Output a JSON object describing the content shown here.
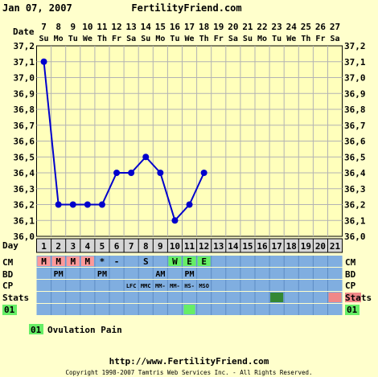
{
  "header": {
    "date": "Jan 07, 2007",
    "site": "FertilityFriend.com"
  },
  "labels": {
    "date": "Date",
    "day": "Day",
    "cm": "CM",
    "bd": "BD",
    "cp": "CP",
    "stats": "Stats",
    "legend_code": "01"
  },
  "legend": {
    "code": "01",
    "text": "Ovulation Pain"
  },
  "footer": {
    "url": "http://www.FertilityFriend.com",
    "copyright": "Copyright 1998-2007 Tamtris Web Services Inc. - All Rights Reserved."
  },
  "colors": {
    "background": "#ffffcc",
    "plot": "#ffffbb",
    "grid": "#b3b3b3",
    "line": "#0000cc",
    "row_blue": "#80aee0",
    "day_row": "#d6d6d6",
    "header_blue": "#0000cc",
    "cm_m": "#ff9999",
    "cm_ew": "#66ee66",
    "stats_green": "#338833",
    "stats_pink": "#f08888",
    "legend_green": "#66ee66"
  },
  "chart_data": {
    "type": "line",
    "ylim": [
      36.0,
      37.2
    ],
    "yticks": [
      "37,2",
      "37,1",
      "37,0",
      "36,9",
      "36,8",
      "36,7",
      "36,6",
      "36,5",
      "36,4",
      "36,3",
      "36,2",
      "36,1",
      "36,0"
    ],
    "dates": [
      "7",
      "8",
      "9",
      "10",
      "11",
      "12",
      "13",
      "14",
      "15",
      "16",
      "17",
      "18",
      "19",
      "20",
      "21",
      "22",
      "23",
      "24",
      "25",
      "26",
      "27"
    ],
    "weekdays": [
      "Su",
      "Mo",
      "Tu",
      "We",
      "Th",
      "Fr",
      "Sa",
      "Su",
      "Mo",
      "Tu",
      "We",
      "Th",
      "Fr",
      "Sa",
      "Su",
      "Mo",
      "Tu",
      "We",
      "Th",
      "Fr",
      "Sa"
    ],
    "days": [
      "1",
      "2",
      "3",
      "4",
      "5",
      "6",
      "7",
      "8",
      "9",
      "10",
      "11",
      "12",
      "13",
      "14",
      "15",
      "16",
      "17",
      "18",
      "19",
      "20",
      "21"
    ],
    "temps": [
      37.1,
      36.2,
      36.2,
      36.2,
      36.2,
      36.4,
      36.4,
      36.5,
      36.4,
      36.1,
      36.2,
      36.4,
      null,
      null,
      null,
      null,
      null,
      null,
      null,
      null,
      null
    ],
    "cm": [
      "M",
      "M",
      "M",
      "M",
      "*",
      "-",
      "",
      "S",
      "",
      "W",
      "E",
      "E",
      "",
      "",
      "",
      "",
      "",
      "",
      "",
      "",
      ""
    ],
    "bd": [
      "",
      "PM",
      "",
      "",
      "PM",
      "",
      "",
      "",
      "AM",
      "",
      "PM",
      "",
      "",
      "",
      "",
      "",
      "",
      "",
      "",
      "",
      ""
    ],
    "cp": [
      "",
      "",
      "",
      "",
      "",
      "",
      "LFC",
      "MMC",
      "MM-",
      "MM-",
      "HS-",
      "MSO",
      "",
      "",
      "",
      "",
      "",
      "",
      "",
      "",
      ""
    ],
    "stats_marks": [
      {
        "day": "17",
        "kind": "green"
      },
      {
        "day": "21",
        "kind": "pink"
      }
    ],
    "symptom_marks": [
      {
        "day": "11",
        "code": "01"
      }
    ]
  }
}
